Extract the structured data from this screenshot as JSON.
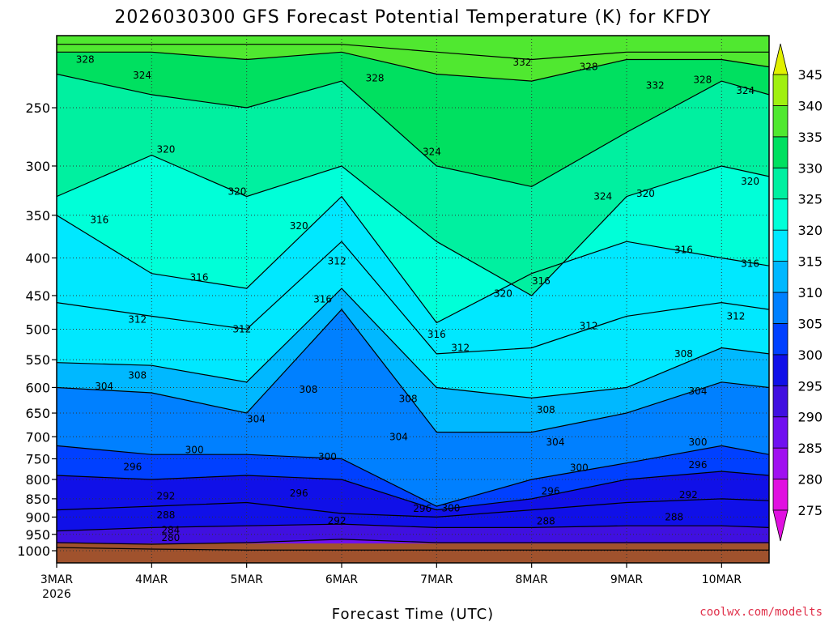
{
  "chart_data": {
    "type": "heatmap",
    "title": "2026030300 GFS Forecast Potential Temperature (K) for KFDY",
    "xlabel": "Forecast Time (UTC)",
    "ylabel": "",
    "credit": "coolwx.com/modelts",
    "x_year_label": "2026",
    "x_ticks": [
      "3MAR",
      "4MAR",
      "5MAR",
      "6MAR",
      "7MAR",
      "8MAR",
      "9MAR",
      "10MAR"
    ],
    "x_range_days": [
      0,
      7.5
    ],
    "y_ticks": [
      250,
      300,
      350,
      400,
      450,
      500,
      550,
      600,
      650,
      700,
      750,
      800,
      850,
      900,
      950,
      1000
    ],
    "y_range_hpa": [
      1000,
      200
    ],
    "y_scale": "log-pressure",
    "grid": true,
    "colorbar": {
      "levels": [
        275,
        280,
        285,
        290,
        295,
        300,
        305,
        310,
        315,
        320,
        325,
        330,
        335,
        340,
        345
      ],
      "colors": [
        "#e010e0",
        "#a010f0",
        "#7010f0",
        "#4010e0",
        "#1010e8",
        "#0040ff",
        "#0080ff",
        "#00b8ff",
        "#00e8ff",
        "#00ffd8",
        "#00f0a0",
        "#00e060",
        "#50e830",
        "#a0f010",
        "#e0f000"
      ],
      "extend": "both"
    },
    "isentropes": [
      {
        "theta": 280,
        "points": [
          [
            0,
            990
          ],
          [
            1,
            995
          ],
          [
            2,
            998
          ]
        ]
      },
      {
        "theta": 284,
        "points": [
          [
            0,
            975
          ],
          [
            1,
            980
          ],
          [
            2,
            975
          ],
          [
            3,
            965
          ],
          [
            4,
            975
          ]
        ]
      },
      {
        "theta": 288,
        "points": [
          [
            0,
            940
          ],
          [
            1,
            930
          ],
          [
            2,
            925
          ],
          [
            3,
            920
          ],
          [
            4,
            930
          ],
          [
            5,
            930
          ],
          [
            6,
            925
          ],
          [
            7,
            925
          ],
          [
            7.5,
            930
          ]
        ]
      },
      {
        "theta": 292,
        "points": [
          [
            0,
            880
          ],
          [
            1,
            870
          ],
          [
            2,
            860
          ],
          [
            3,
            890
          ],
          [
            4,
            900
          ],
          [
            5,
            880
          ],
          [
            6,
            860
          ],
          [
            7,
            850
          ],
          [
            7.5,
            855
          ]
        ]
      },
      {
        "theta": 296,
        "points": [
          [
            0,
            790
          ],
          [
            1,
            800
          ],
          [
            2,
            790
          ],
          [
            3,
            800
          ],
          [
            4,
            880
          ],
          [
            5,
            850
          ],
          [
            6,
            800
          ],
          [
            7,
            780
          ],
          [
            7.5,
            790
          ]
        ]
      },
      {
        "theta": 300,
        "points": [
          [
            0,
            720
          ],
          [
            1,
            740
          ],
          [
            2,
            740
          ],
          [
            3,
            750
          ],
          [
            4,
            870
          ],
          [
            5,
            800
          ],
          [
            6,
            760
          ],
          [
            7,
            720
          ],
          [
            7.5,
            740
          ]
        ]
      },
      {
        "theta": 304,
        "points": [
          [
            0,
            600
          ],
          [
            1,
            610
          ],
          [
            2,
            650
          ],
          [
            3,
            470
          ],
          [
            4,
            690
          ],
          [
            5,
            690
          ],
          [
            6,
            650
          ],
          [
            7,
            590
          ],
          [
            7.5,
            600
          ]
        ]
      },
      {
        "theta": 308,
        "points": [
          [
            0,
            555
          ],
          [
            1,
            560
          ],
          [
            2,
            590
          ],
          [
            3,
            440
          ],
          [
            4,
            600
          ],
          [
            5,
            620
          ],
          [
            6,
            600
          ],
          [
            7,
            530
          ],
          [
            7.5,
            540
          ]
        ]
      },
      {
        "theta": 312,
        "points": [
          [
            0,
            460
          ],
          [
            1,
            480
          ],
          [
            2,
            500
          ],
          [
            3,
            380
          ],
          [
            4,
            540
          ],
          [
            5,
            530
          ],
          [
            6,
            480
          ],
          [
            7,
            460
          ],
          [
            7.5,
            470
          ]
        ]
      },
      {
        "theta": 316,
        "points": [
          [
            0,
            350
          ],
          [
            1,
            420
          ],
          [
            2,
            440
          ],
          [
            3,
            330
          ],
          [
            4,
            490
          ],
          [
            5,
            420
          ],
          [
            6,
            380
          ],
          [
            7,
            400
          ],
          [
            7.5,
            410
          ]
        ]
      },
      {
        "theta": 320,
        "points": [
          [
            0,
            330
          ],
          [
            1,
            290
          ],
          [
            2,
            330
          ],
          [
            3,
            300
          ],
          [
            4,
            380
          ],
          [
            5,
            450
          ],
          [
            6,
            330
          ],
          [
            7,
            300
          ],
          [
            7.5,
            310
          ]
        ]
      },
      {
        "theta": 324,
        "points": [
          [
            0,
            225
          ],
          [
            1,
            240
          ],
          [
            2,
            250
          ],
          [
            3,
            230
          ],
          [
            4,
            300
          ],
          [
            5,
            320
          ],
          [
            6,
            270
          ],
          [
            7,
            230
          ],
          [
            7.5,
            240
          ]
        ]
      },
      {
        "theta": 328,
        "points": [
          [
            0,
            210
          ],
          [
            1,
            210
          ],
          [
            2,
            215
          ],
          [
            3,
            210
          ],
          [
            4,
            225
          ],
          [
            5,
            230
          ],
          [
            6,
            215
          ],
          [
            7,
            215
          ],
          [
            7.5,
            220
          ]
        ]
      },
      {
        "theta": 332,
        "points": [
          [
            3,
            205
          ],
          [
            4,
            210
          ],
          [
            5,
            215
          ],
          [
            6,
            210
          ]
        ]
      }
    ],
    "contour_labels": [
      {
        "text": "328",
        "x": 0.3,
        "p": 215
      },
      {
        "text": "324",
        "x": 0.9,
        "p": 226
      },
      {
        "text": "328",
        "x": 3.35,
        "p": 228
      },
      {
        "text": "332",
        "x": 4.9,
        "p": 217
      },
      {
        "text": "328",
        "x": 5.6,
        "p": 220
      },
      {
        "text": "332",
        "x": 6.3,
        "p": 233
      },
      {
        "text": "328",
        "x": 6.8,
        "p": 229
      },
      {
        "text": "324",
        "x": 7.25,
        "p": 237
      },
      {
        "text": "320",
        "x": 1.15,
        "p": 285
      },
      {
        "text": "324",
        "x": 3.95,
        "p": 287
      },
      {
        "text": "320",
        "x": 1.9,
        "p": 325
      },
      {
        "text": "320",
        "x": 2.55,
        "p": 362
      },
      {
        "text": "324",
        "x": 5.75,
        "p": 330
      },
      {
        "text": "320",
        "x": 6.2,
        "p": 327
      },
      {
        "text": "320",
        "x": 7.3,
        "p": 315
      },
      {
        "text": "316",
        "x": 0.45,
        "p": 355
      },
      {
        "text": "316",
        "x": 6.6,
        "p": 390
      },
      {
        "text": "316",
        "x": 7.3,
        "p": 407
      },
      {
        "text": "312",
        "x": 2.95,
        "p": 404
      },
      {
        "text": "316",
        "x": 1.5,
        "p": 425
      },
      {
        "text": "316",
        "x": 5.1,
        "p": 430
      },
      {
        "text": "320",
        "x": 4.7,
        "p": 447
      },
      {
        "text": "316",
        "x": 2.8,
        "p": 455
      },
      {
        "text": "312",
        "x": 0.85,
        "p": 485
      },
      {
        "text": "312",
        "x": 7.15,
        "p": 480
      },
      {
        "text": "312",
        "x": 1.95,
        "p": 500
      },
      {
        "text": "312",
        "x": 5.6,
        "p": 495
      },
      {
        "text": "316",
        "x": 4.0,
        "p": 508
      },
      {
        "text": "312",
        "x": 4.25,
        "p": 530
      },
      {
        "text": "308",
        "x": 6.6,
        "p": 540
      },
      {
        "text": "308",
        "x": 0.85,
        "p": 578
      },
      {
        "text": "304",
        "x": 0.5,
        "p": 598
      },
      {
        "text": "308",
        "x": 2.65,
        "p": 604
      },
      {
        "text": "304",
        "x": 6.75,
        "p": 607
      },
      {
        "text": "308",
        "x": 3.7,
        "p": 622
      },
      {
        "text": "308",
        "x": 5.15,
        "p": 643
      },
      {
        "text": "304",
        "x": 2.1,
        "p": 662
      },
      {
        "text": "304",
        "x": 3.6,
        "p": 700
      },
      {
        "text": "304",
        "x": 5.25,
        "p": 712
      },
      {
        "text": "300",
        "x": 6.75,
        "p": 712
      },
      {
        "text": "300",
        "x": 1.45,
        "p": 729
      },
      {
        "text": "300",
        "x": 2.85,
        "p": 745
      },
      {
        "text": "296",
        "x": 0.8,
        "p": 769
      },
      {
        "text": "300",
        "x": 5.5,
        "p": 771
      },
      {
        "text": "296",
        "x": 6.75,
        "p": 764
      },
      {
        "text": "296",
        "x": 2.55,
        "p": 835
      },
      {
        "text": "296",
        "x": 5.2,
        "p": 830
      },
      {
        "text": "292",
        "x": 1.15,
        "p": 843
      },
      {
        "text": "292",
        "x": 6.65,
        "p": 840
      },
      {
        "text": "296",
        "x": 3.85,
        "p": 876
      },
      {
        "text": "300",
        "x": 4.15,
        "p": 875
      },
      {
        "text": "288",
        "x": 1.15,
        "p": 895
      },
      {
        "text": "292",
        "x": 2.95,
        "p": 910
      },
      {
        "text": "288",
        "x": 5.15,
        "p": 912
      },
      {
        "text": "288",
        "x": 6.5,
        "p": 900
      },
      {
        "text": "284",
        "x": 1.2,
        "p": 937
      },
      {
        "text": "280",
        "x": 1.2,
        "p": 960
      }
    ]
  }
}
